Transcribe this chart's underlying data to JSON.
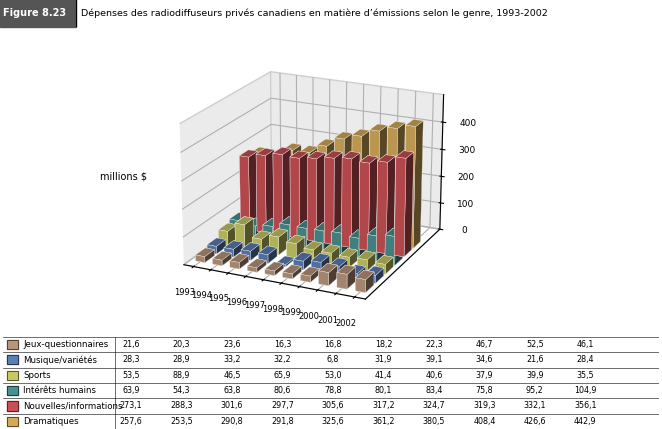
{
  "title": "Figure 8.23",
  "subtitle": "Dépenses des radiodiffuseurs privés canadiens en matière d’émissions selon le genre, 1993-2002",
  "ylabel": "millions $",
  "years": [
    1993,
    1994,
    1995,
    1996,
    1997,
    1998,
    1999,
    2000,
    2001,
    2002
  ],
  "categories": [
    "Jeux-questionnaires",
    "Musique/variétés",
    "Sports",
    "Intérêts humains",
    "Nouvelles/informations",
    "Dramatiques"
  ],
  "colors": [
    "#b8957a",
    "#5b7db5",
    "#c8c862",
    "#4a8f8f",
    "#c85055",
    "#d4aa5a"
  ],
  "data": [
    [
      21.6,
      20.3,
      23.6,
      16.3,
      16.8,
      18.2,
      22.3,
      46.7,
      52.5,
      46.1
    ],
    [
      28.3,
      28.9,
      33.2,
      32.2,
      6.8,
      31.9,
      39.1,
      34.6,
      21.6,
      28.4
    ],
    [
      53.5,
      88.9,
      46.5,
      65.9,
      53.0,
      41.4,
      40.6,
      37.9,
      39.9,
      35.5
    ],
    [
      63.9,
      54.3,
      63.8,
      80.6,
      78.8,
      80.1,
      83.4,
      75.8,
      95.2,
      104.9
    ],
    [
      273.1,
      288.3,
      301.6,
      297.7,
      305.6,
      317.2,
      324.7,
      319.3,
      332.1,
      356.1
    ],
    [
      257.6,
      253.5,
      290.8,
      291.8,
      325.6,
      361.2,
      380.5,
      408.4,
      426.6,
      442.9
    ]
  ],
  "zlim": [
    0,
    500
  ],
  "zticks": [
    0,
    100,
    200,
    300,
    400
  ],
  "background_color": "#d8d8d8",
  "figure_bg": "#ffffff",
  "header_bg": "#555555",
  "elev": 20,
  "azim": -65
}
